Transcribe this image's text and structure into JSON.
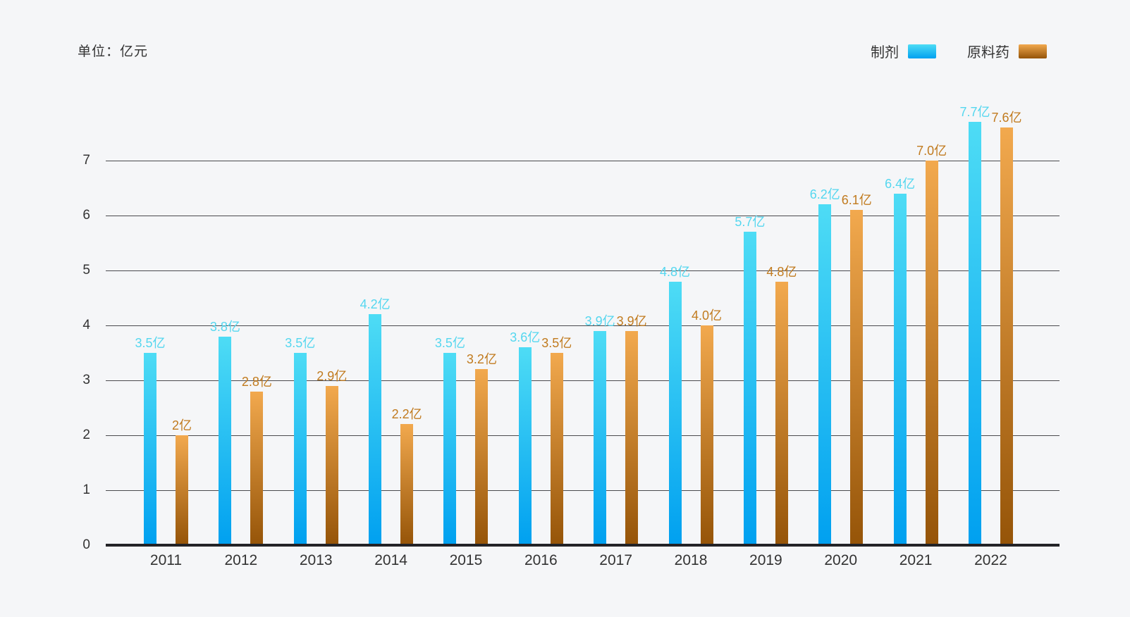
{
  "unit_label": "单位：亿元",
  "legend": {
    "items": [
      {
        "label": "制剂",
        "series": "preparation"
      },
      {
        "label": "原料药",
        "series": "api"
      }
    ]
  },
  "colors": {
    "background": "#f5f6f8",
    "preparation_top": "#4edcf5",
    "preparation_bottom": "#00a0f0",
    "api_top": "#f2a94e",
    "api_bottom": "#955408",
    "preparation_label": "#55d7ef",
    "api_label": "#c17b1f",
    "axis_text": "#333333",
    "gridline": "#4a4a4e",
    "baseline": "#232327"
  },
  "chart_data": {
    "type": "bar",
    "title": "",
    "ylabel": "亿元",
    "xlabel": "",
    "ylim": [
      0,
      7.7
    ],
    "y_ticks": [
      0,
      1,
      2,
      3,
      4,
      5,
      6,
      7
    ],
    "grid": true,
    "legend_position": "top-right",
    "categories": [
      "2011",
      "2012",
      "2013",
      "2014",
      "2015",
      "2016",
      "2017",
      "2018",
      "2019",
      "2020",
      "2021",
      "2022"
    ],
    "series": [
      {
        "name": "制剂",
        "key": "preparation",
        "values": [
          3.5,
          3.8,
          3.5,
          4.2,
          3.5,
          3.6,
          3.9,
          4.8,
          5.7,
          6.2,
          6.4,
          7.7
        ],
        "labels": [
          "3.5亿",
          "3.8亿",
          "3.5亿",
          "4.2亿",
          "3.5亿",
          "3.6亿",
          "3.9亿",
          "4.8亿",
          "5.7亿",
          "6.2亿",
          "6.4亿",
          "7.7亿"
        ]
      },
      {
        "name": "原料药",
        "key": "api",
        "values": [
          2,
          2.8,
          2.9,
          2.2,
          3.2,
          3.5,
          3.9,
          4.0,
          4.8,
          6.1,
          7.0,
          7.6
        ],
        "labels": [
          "2亿",
          "2.8亿",
          "2.9亿",
          "2.2亿",
          "3.2亿",
          "3.5亿",
          "3.9亿",
          "4.0亿",
          "4.8亿",
          "6.1亿",
          "7.0亿",
          "7.6亿"
        ]
      }
    ]
  }
}
